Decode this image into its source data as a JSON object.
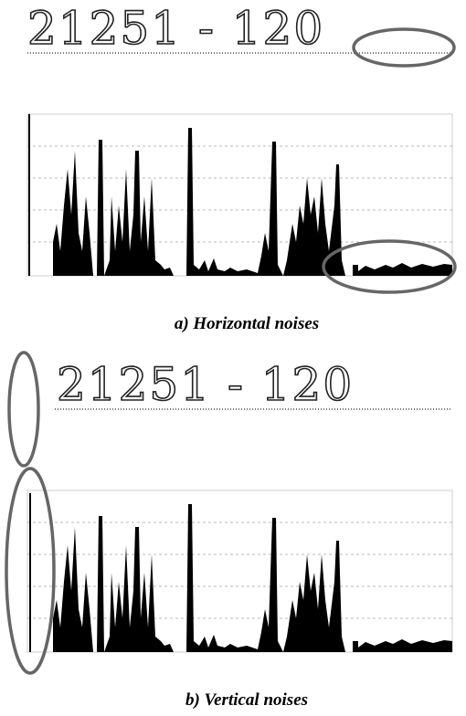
{
  "panels": [
    {
      "handwriting": "21251 - 120",
      "caption": "a) Horizontal noises"
    },
    {
      "handwriting": "21251 - 120",
      "caption": "b) Vertical noises"
    }
  ]
}
